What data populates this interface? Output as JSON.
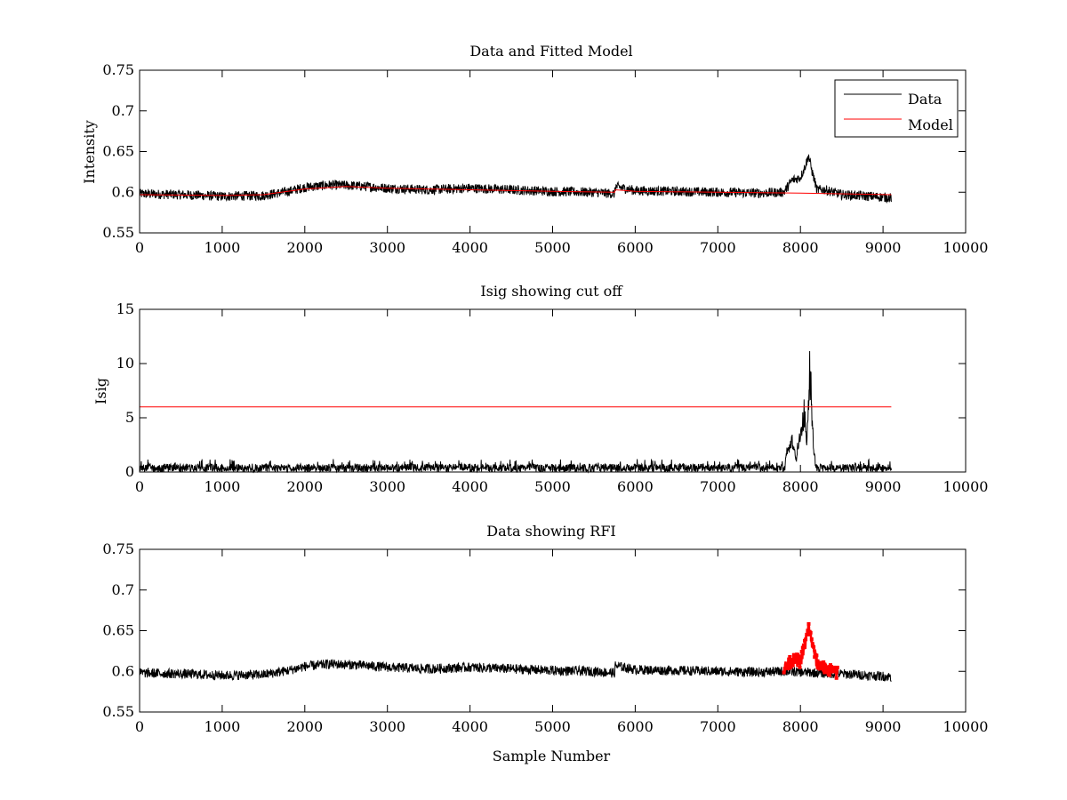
{
  "chart_data": [
    {
      "type": "line",
      "title": "Data and Fitted Model",
      "xlabel": "",
      "ylabel": "Intensity",
      "xlim": [
        0,
        10000
      ],
      "ylim": [
        0.55,
        0.75
      ],
      "xticks": [
        0,
        1000,
        2000,
        3000,
        4000,
        5000,
        6000,
        7000,
        8000,
        9000,
        10000
      ],
      "xtick_labels": [
        "0",
        "1000",
        "2000",
        "3000",
        "4000",
        "5000",
        "6000",
        "7000",
        "8000",
        "9000",
        "10000"
      ],
      "yticks": [
        0.55,
        0.6,
        0.65,
        0.7,
        0.75
      ],
      "ytick_labels": [
        "0.55",
        "0.6",
        "0.65",
        "0.7",
        "0.75"
      ],
      "grid": false,
      "legend": {
        "placement": "top-right",
        "entries": [
          "Data",
          "Model"
        ]
      },
      "series": [
        {
          "name": "Data",
          "color": "#000000",
          "style": "noisy-line",
          "x": [
            0,
            500,
            1000,
            1500,
            1800,
            2000,
            2300,
            2600,
            3000,
            3500,
            4000,
            4500,
            5000,
            5500,
            5750,
            5760,
            6000,
            6500,
            7000,
            7500,
            7800,
            7900,
            8000,
            8050,
            8100,
            8130,
            8200,
            8300,
            8500,
            9000,
            9100
          ],
          "y": [
            0.598,
            0.597,
            0.595,
            0.596,
            0.601,
            0.606,
            0.609,
            0.608,
            0.605,
            0.603,
            0.605,
            0.603,
            0.601,
            0.6,
            0.598,
            0.607,
            0.602,
            0.601,
            0.6,
            0.599,
            0.6,
            0.615,
            0.618,
            0.63,
            0.645,
            0.63,
            0.603,
            0.603,
            0.597,
            0.594,
            0.593
          ],
          "noise_amplitude": 0.006
        },
        {
          "name": "Model",
          "color": "#ff0000",
          "style": "line",
          "x": [
            0,
            1000,
            1500,
            2000,
            2500,
            3000,
            4000,
            5000,
            5750,
            5760,
            6000,
            7000,
            8000,
            9100
          ],
          "y": [
            0.597,
            0.596,
            0.597,
            0.604,
            0.607,
            0.605,
            0.603,
            0.601,
            0.6,
            0.603,
            0.601,
            0.6,
            0.599,
            0.597
          ]
        }
      ]
    },
    {
      "type": "line",
      "title": "Isig showing cut off",
      "xlabel": "",
      "ylabel": "Isig",
      "xlim": [
        0,
        10000
      ],
      "ylim": [
        0,
        15
      ],
      "xticks": [
        0,
        1000,
        2000,
        3000,
        4000,
        5000,
        6000,
        7000,
        8000,
        9000,
        10000
      ],
      "xtick_labels": [
        "0",
        "1000",
        "2000",
        "3000",
        "4000",
        "5000",
        "6000",
        "7000",
        "8000",
        "9000",
        "10000"
      ],
      "yticks": [
        0,
        5,
        10,
        15
      ],
      "ytick_labels": [
        "0",
        "5",
        "10",
        "15"
      ],
      "grid": false,
      "series": [
        {
          "color": "#000000",
          "style": "noisy-line",
          "x": [
            0,
            1000,
            2000,
            3000,
            4000,
            5000,
            6000,
            7000,
            7800,
            7850,
            7900,
            7950,
            8000,
            8050,
            8080,
            8110,
            8130,
            8160,
            8200,
            8300,
            9000,
            9100
          ],
          "y": [
            0.5,
            0.5,
            0.5,
            0.5,
            0.5,
            0.5,
            0.5,
            0.5,
            0.5,
            2.0,
            3.0,
            1.0,
            3.5,
            6.0,
            2.5,
            10.5,
            8.0,
            1.5,
            0.5,
            0.5,
            0.5,
            0.5
          ],
          "noise_amplitude": 1.5
        },
        {
          "color": "#ff0000",
          "style": "line",
          "x": [
            0,
            9100
          ],
          "y": [
            6,
            6
          ]
        }
      ]
    },
    {
      "type": "line",
      "title": "Data showing RFI",
      "xlabel": "Sample Number",
      "ylabel": "",
      "xlim": [
        0,
        10000
      ],
      "ylim": [
        0.55,
        0.75
      ],
      "xticks": [
        0,
        1000,
        2000,
        3000,
        4000,
        5000,
        6000,
        7000,
        8000,
        9000,
        10000
      ],
      "xtick_labels": [
        "0",
        "1000",
        "2000",
        "3000",
        "4000",
        "5000",
        "6000",
        "7000",
        "8000",
        "9000",
        "10000"
      ],
      "yticks": [
        0.55,
        0.6,
        0.65,
        0.7,
        0.75
      ],
      "ytick_labels": [
        "0.55",
        "0.6",
        "0.65",
        "0.7",
        "0.75"
      ],
      "grid": false,
      "series": [
        {
          "color": "#000000",
          "style": "noisy-line",
          "x": [
            0,
            500,
            1000,
            1500,
            1800,
            2000,
            2300,
            2600,
            3000,
            3500,
            4000,
            4500,
            5000,
            5500,
            5750,
            5760,
            6000,
            6500,
            7000,
            7500,
            7800,
            8450,
            8500,
            9000,
            9100
          ],
          "y": [
            0.598,
            0.597,
            0.595,
            0.596,
            0.601,
            0.606,
            0.609,
            0.608,
            0.605,
            0.603,
            0.605,
            0.603,
            0.601,
            0.6,
            0.598,
            0.607,
            0.602,
            0.601,
            0.6,
            0.599,
            0.6,
            0.597,
            0.597,
            0.594,
            0.593
          ],
          "noise_amplitude": 0.006
        },
        {
          "color": "#ff0000",
          "style": "markers",
          "x": [
            7800,
            7900,
            8000,
            8050,
            8100,
            8130,
            8200,
            8300,
            8400,
            8450
          ],
          "y": [
            0.603,
            0.615,
            0.612,
            0.63,
            0.655,
            0.64,
            0.61,
            0.603,
            0.6,
            0.598
          ],
          "noise_amplitude": 0.008
        }
      ]
    }
  ]
}
